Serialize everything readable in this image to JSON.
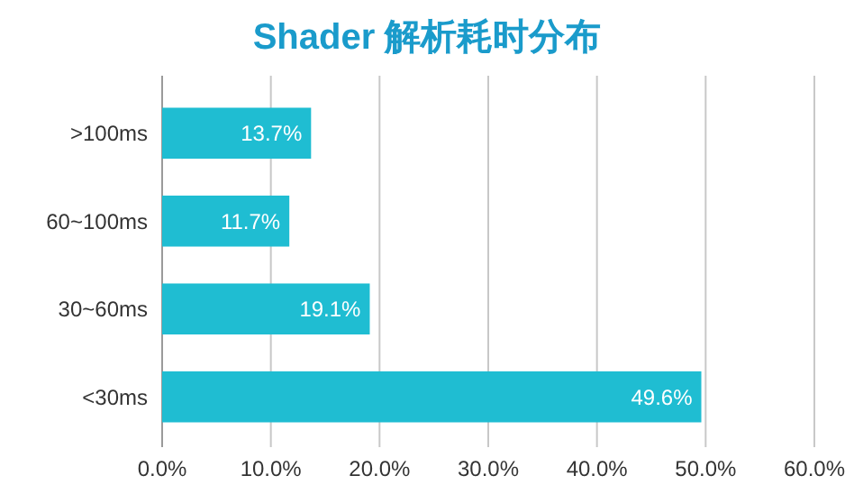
{
  "chart_data": {
    "type": "bar",
    "orientation": "horizontal",
    "title": "Shader 解析耗时分布",
    "categories": [
      ">100ms",
      "60~100ms",
      "30~60ms",
      "<30ms"
    ],
    "values": [
      13.7,
      11.7,
      19.1,
      49.6
    ],
    "value_labels": [
      "13.7%",
      "11.7%",
      "19.1%",
      "49.6%"
    ],
    "color": "#1fbdd2",
    "xlim": [
      0,
      60
    ],
    "xticks": [
      {
        "value": 0,
        "label": "0.0%"
      },
      {
        "value": 10,
        "label": "10.0%"
      },
      {
        "value": 20,
        "label": "20.0%"
      },
      {
        "value": 30,
        "label": "30.0%"
      },
      {
        "value": 40,
        "label": "40.0%"
      },
      {
        "value": 50,
        "label": "50.0%"
      },
      {
        "value": 60,
        "label": "60.0%"
      }
    ],
    "grid": "x"
  }
}
